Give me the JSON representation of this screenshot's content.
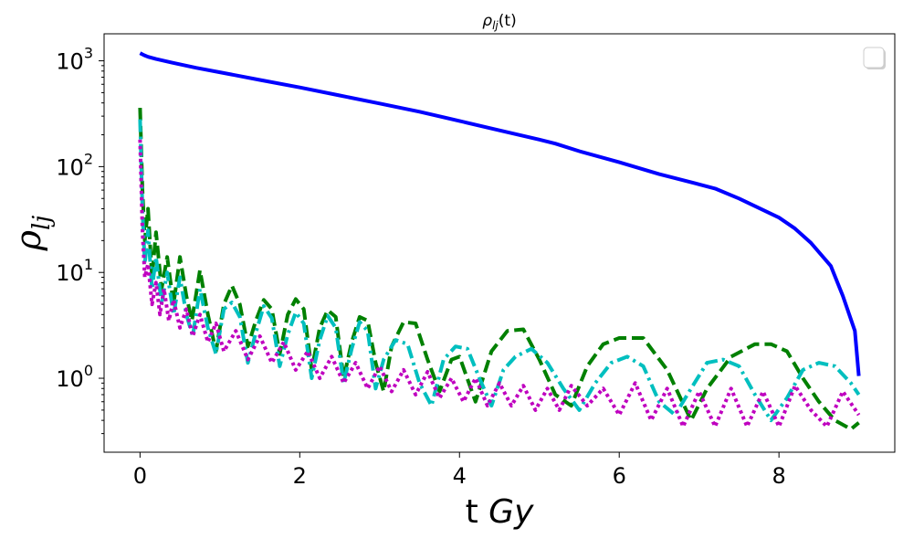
{
  "chart_data": {
    "type": "line",
    "title": "ρlj(t)",
    "title_parts": {
      "base": "ρ",
      "sub": "lj",
      "suffix": "(t)"
    },
    "xlabel": "t Gy",
    "xlabel_parts": {
      "plain": "t ",
      "italic": "Gy"
    },
    "ylabel": "ρlj",
    "ylabel_parts": {
      "base": "ρ",
      "sub": "lj"
    },
    "yscale": "log",
    "xlim": [
      -0.45,
      9.45
    ],
    "ylim": [
      0.2,
      1800
    ],
    "xticks": [
      0,
      2,
      4,
      6,
      8
    ],
    "yticks": [
      {
        "value": 1,
        "base": "10",
        "exp": "0"
      },
      {
        "value": 10,
        "base": "10",
        "exp": "1"
      },
      {
        "value": 100,
        "base": "10",
        "exp": "2"
      },
      {
        "value": 1000,
        "base": "10",
        "exp": "3"
      }
    ],
    "grid": false,
    "legend": {
      "placement": "top-right",
      "entries": []
    },
    "series": [
      {
        "color": "#0000ff",
        "style": "solid",
        "x": [
          0,
          0.05,
          0.1,
          0.2,
          0.4,
          0.7,
          1.0,
          1.5,
          2.0,
          2.5,
          3.0,
          3.5,
          4.0,
          4.5,
          5.0,
          5.2,
          5.5,
          6.0,
          6.5,
          7.0,
          7.2,
          7.5,
          8.0,
          8.2,
          8.4,
          8.65,
          8.8,
          8.95,
          9.0
        ],
        "y": [
          1180,
          1130,
          1090,
          1040,
          960,
          860,
          780,
          660,
          560,
          470,
          395,
          330,
          270,
          220,
          180,
          165,
          140,
          110,
          85,
          68,
          62,
          50,
          33,
          26,
          19,
          11.5,
          6,
          2.8,
          1.05
        ]
      },
      {
        "color": "#008000",
        "style": "dashed",
        "x": [
          0,
          0.03,
          0.06,
          0.1,
          0.15,
          0.2,
          0.27,
          0.34,
          0.42,
          0.5,
          0.58,
          0.65,
          0.75,
          0.85,
          0.95,
          1.05,
          1.15,
          1.25,
          1.35,
          1.45,
          1.55,
          1.65,
          1.75,
          1.85,
          1.95,
          2.05,
          2.15,
          2.25,
          2.35,
          2.45,
          2.55,
          2.65,
          2.75,
          2.85,
          2.95,
          3.05,
          3.15,
          3.3,
          3.45,
          3.6,
          3.75,
          3.9,
          4.0,
          4.2,
          4.4,
          4.6,
          4.8,
          5.0,
          5.2,
          5.4,
          5.6,
          5.8,
          6.0,
          6.3,
          6.6,
          6.9,
          7.1,
          7.4,
          7.7,
          7.9,
          8.1,
          8.3,
          8.5,
          8.7,
          8.9,
          9.0
        ],
        "y": [
          360,
          60,
          20,
          40,
          9,
          24,
          7,
          14,
          5,
          14,
          6,
          3.5,
          10.5,
          4,
          1.8,
          5,
          7.5,
          5,
          2,
          3.5,
          5.5,
          4.5,
          1.7,
          4,
          5.6,
          4.5,
          1.2,
          3,
          4.4,
          3.8,
          1.0,
          2.2,
          3.8,
          3.5,
          1.4,
          0.75,
          2.0,
          3.4,
          3.3,
          1.5,
          0.75,
          1.5,
          1.6,
          0.6,
          1.8,
          2.8,
          2.9,
          1.5,
          0.7,
          0.55,
          1.3,
          2.1,
          2.4,
          2.4,
          1.2,
          0.4,
          0.8,
          1.6,
          2.1,
          2.1,
          1.8,
          1.0,
          0.6,
          0.4,
          0.33,
          0.38
        ]
      },
      {
        "color": "#00bfbf",
        "style": "dashdot",
        "x": [
          0,
          0.03,
          0.06,
          0.1,
          0.15,
          0.2,
          0.27,
          0.34,
          0.42,
          0.5,
          0.58,
          0.66,
          0.75,
          0.85,
          0.95,
          1.05,
          1.15,
          1.25,
          1.35,
          1.45,
          1.55,
          1.65,
          1.75,
          1.85,
          1.95,
          2.05,
          2.15,
          2.25,
          2.35,
          2.45,
          2.55,
          2.65,
          2.75,
          2.85,
          2.95,
          3.05,
          3.2,
          3.35,
          3.5,
          3.65,
          3.8,
          3.95,
          4.1,
          4.25,
          4.4,
          4.55,
          4.7,
          4.9,
          5.1,
          5.3,
          5.5,
          5.7,
          5.9,
          6.1,
          6.3,
          6.5,
          6.7,
          6.9,
          7.1,
          7.3,
          7.5,
          7.7,
          7.9,
          8.1,
          8.3,
          8.5,
          8.7,
          8.9,
          9.0
        ],
        "y": [
          280,
          40,
          12,
          25,
          7,
          14,
          5,
          10,
          4,
          9,
          4,
          2.5,
          7,
          3,
          1.7,
          4.5,
          5.2,
          3.8,
          1.4,
          2.7,
          4.8,
          3.7,
          1.3,
          2.6,
          4.2,
          3.3,
          1.0,
          2.3,
          3.9,
          3.0,
          0.9,
          1.9,
          3.4,
          2.8,
          0.8,
          1.5,
          2.3,
          2.1,
          0.9,
          0.55,
          1.5,
          2.0,
          1.9,
          1.0,
          0.55,
          1.2,
          1.6,
          1.9,
          1.4,
          0.8,
          0.5,
          0.9,
          1.4,
          1.6,
          1.3,
          0.6,
          0.45,
          0.8,
          1.4,
          1.5,
          1.3,
          0.7,
          0.4,
          0.65,
          1.2,
          1.4,
          1.3,
          0.9,
          0.7
        ]
      },
      {
        "color": "#bf00bf",
        "style": "dotted",
        "x": [
          0,
          0.03,
          0.06,
          0.1,
          0.15,
          0.2,
          0.25,
          0.3,
          0.36,
          0.42,
          0.5,
          0.58,
          0.66,
          0.75,
          0.85,
          0.95,
          1.05,
          1.2,
          1.35,
          1.5,
          1.65,
          1.8,
          1.95,
          2.1,
          2.25,
          2.4,
          2.55,
          2.7,
          2.85,
          3.0,
          3.15,
          3.3,
          3.45,
          3.6,
          3.75,
          3.9,
          4.05,
          4.2,
          4.35,
          4.5,
          4.65,
          4.8,
          4.95,
          5.1,
          5.25,
          5.4,
          5.6,
          5.8,
          6.0,
          6.2,
          6.4,
          6.6,
          6.8,
          7.0,
          7.2,
          7.4,
          7.6,
          7.8,
          8.0,
          8.2,
          8.4,
          8.6,
          8.8,
          9.0
        ],
        "y": [
          180,
          25,
          9,
          12,
          5,
          8,
          4,
          7,
          3.5,
          5.5,
          3,
          4.5,
          2.5,
          4,
          2.2,
          3.3,
          1.8,
          2.8,
          1.5,
          2.5,
          1.4,
          2.2,
          1.2,
          1.8,
          1.0,
          1.6,
          0.9,
          1.4,
          0.8,
          1.3,
          0.75,
          1.2,
          0.7,
          1.15,
          0.65,
          1.0,
          0.6,
          1.0,
          0.55,
          0.9,
          0.55,
          0.85,
          0.5,
          0.8,
          0.5,
          0.85,
          0.55,
          0.8,
          0.45,
          0.9,
          0.4,
          0.8,
          0.35,
          0.75,
          0.35,
          0.8,
          0.35,
          0.75,
          0.35,
          0.85,
          0.5,
          0.35,
          0.75,
          0.45
        ]
      }
    ]
  }
}
